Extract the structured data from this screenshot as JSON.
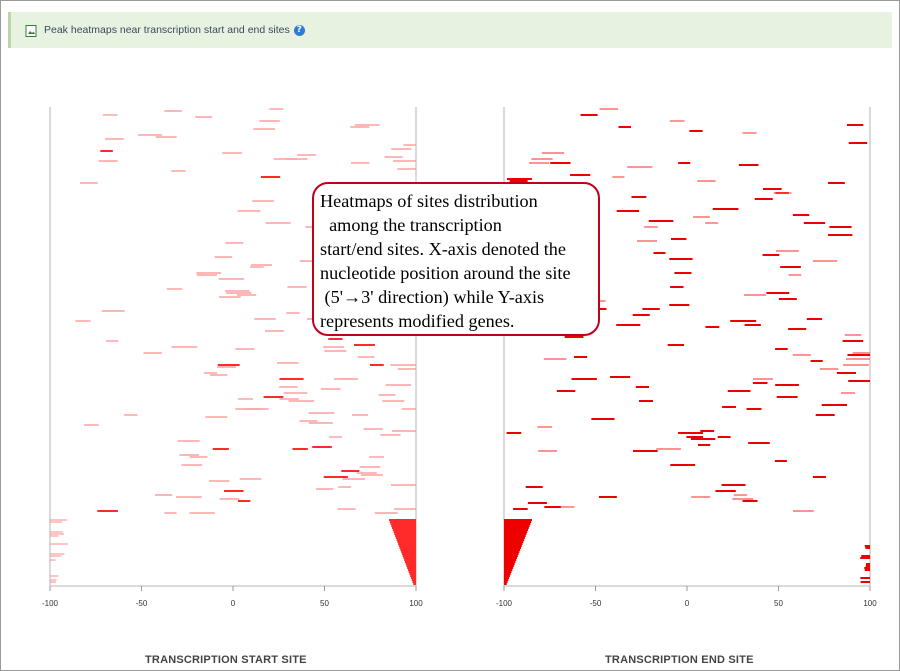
{
  "panel": {
    "title": "Peak heatmaps near transcription start and end sites",
    "icon": "image-file-icon",
    "help_icon": "question-circle-icon",
    "help_glyph": "?"
  },
  "annotation": {
    "lines": [
      "Heatmaps of sites distribution",
      "  among the transcription",
      "start/end sites. X-axis denoted the",
      "nucleotide position around the site",
      " (5'→3' direction) while Y-axis",
      "represents modified genes."
    ]
  },
  "chart_data": [
    {
      "type": "heatmap",
      "title": "",
      "xlabel": "TRANSCRIPTION START SITE",
      "ylabel": "",
      "xlim": [
        -100,
        100
      ],
      "xticks": [
        -100,
        -50,
        0,
        50,
        100
      ],
      "tick_labels": [
        "-100",
        "-50",
        "0",
        "50",
        "100"
      ],
      "color": "#ff2a2a",
      "grid": false,
      "description_of_marks": "rows of horizontal peak segments per gene"
    },
    {
      "type": "heatmap",
      "title": "",
      "xlabel": "TRANSCRIPTION END SITE",
      "ylabel": "",
      "xlim": [
        -100,
        100
      ],
      "xticks": [
        -100,
        -50,
        0,
        50,
        100
      ],
      "tick_labels": [
        "-100",
        "-50",
        "0",
        "50",
        "100"
      ],
      "color": "#ee0000",
      "grid": false,
      "description_of_marks": "rows of horizontal peak segments per gene"
    }
  ]
}
